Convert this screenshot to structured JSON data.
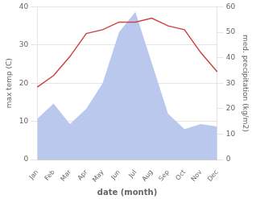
{
  "chart_data": {
    "type": "line",
    "categories": [
      "Jan",
      "Feb",
      "Mar",
      "Apr",
      "May",
      "Jun",
      "Jul",
      "Aug",
      "Sep",
      "Oct",
      "Nov",
      "Dec"
    ],
    "series": [
      {
        "type": "area",
        "color": "#bbc8ee",
        "axis": "y2",
        "values": [
          16,
          22,
          14,
          20,
          30,
          50,
          58,
          38,
          18,
          12,
          14,
          13
        ]
      },
      {
        "type": "line",
        "color": "#cc4444",
        "values": [
          19,
          22,
          27,
          33,
          34,
          36,
          36,
          37,
          35,
          34,
          28,
          23
        ]
      }
    ],
    "xlabel": "date (month)",
    "ylabel": "max temp (C)",
    "y2label": "med. precipitation (kg/m2)",
    "ylim": [
      0,
      40
    ],
    "yticks": [
      0,
      10,
      20,
      30,
      40
    ],
    "y2lim": [
      0,
      60
    ],
    "y2ticks": [
      0,
      10,
      20,
      30,
      40,
      50,
      60
    ],
    "grid": true
  }
}
